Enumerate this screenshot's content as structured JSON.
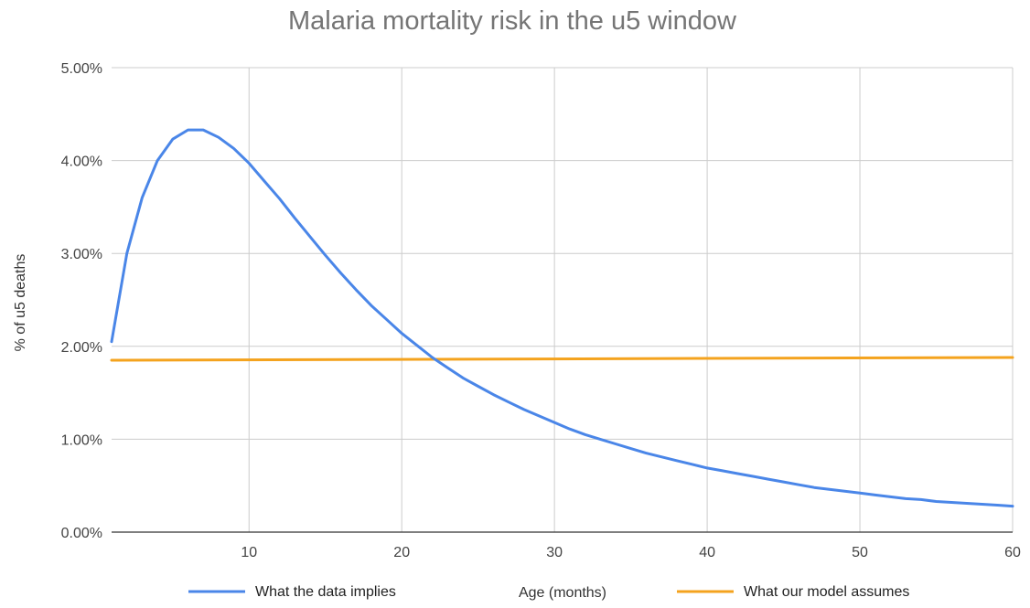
{
  "chart_data": {
    "type": "line",
    "title": "Malaria mortality risk in the u5 window",
    "xlabel": "Age (months)",
    "ylabel": "% of u5 deaths",
    "xlim": [
      1,
      60
    ],
    "ylim": [
      0,
      0.05
    ],
    "x_ticks": [
      10,
      20,
      30,
      40,
      50,
      60
    ],
    "x_tick_labels": [
      "10",
      "20",
      "30",
      "40",
      "50",
      "60"
    ],
    "y_ticks": [
      0,
      0.01,
      0.02,
      0.03,
      0.04,
      0.05
    ],
    "y_tick_labels": [
      "0.00%",
      "1.00%",
      "2.00%",
      "3.00%",
      "4.00%",
      "5.00%"
    ],
    "grid": true,
    "legend_position": "bottom",
    "x": [
      1,
      2,
      3,
      4,
      5,
      6,
      7,
      8,
      9,
      10,
      11,
      12,
      13,
      14,
      15,
      16,
      17,
      18,
      19,
      20,
      21,
      22,
      23,
      24,
      25,
      26,
      27,
      28,
      29,
      30,
      31,
      32,
      33,
      34,
      35,
      36,
      37,
      38,
      39,
      40,
      41,
      42,
      43,
      44,
      45,
      46,
      47,
      48,
      49,
      50,
      51,
      52,
      53,
      54,
      55,
      56,
      57,
      58,
      59,
      60
    ],
    "series": [
      {
        "name": "What the data implies",
        "color": "#4a86e8",
        "values": [
          0.0205,
          0.03,
          0.036,
          0.04,
          0.0423,
          0.0433,
          0.0433,
          0.0425,
          0.0413,
          0.0397,
          0.0378,
          0.0359,
          0.0338,
          0.0318,
          0.0298,
          0.0279,
          0.0261,
          0.0244,
          0.0229,
          0.0214,
          0.0201,
          0.0188,
          0.0177,
          0.0166,
          0.0157,
          0.0148,
          0.014,
          0.0132,
          0.0125,
          0.0118,
          0.0111,
          0.0105,
          0.01,
          0.0095,
          0.009,
          0.0085,
          0.0081,
          0.0077,
          0.0073,
          0.0069,
          0.0066,
          0.0063,
          0.006,
          0.0057,
          0.0054,
          0.0051,
          0.0048,
          0.0046,
          0.0044,
          0.0042,
          0.004,
          0.0038,
          0.0036,
          0.0035,
          0.0033,
          0.0032,
          0.0031,
          0.003,
          0.0029,
          0.0028
        ]
      },
      {
        "name": "What our model assumes",
        "color": "#f4a31e",
        "values": "linear",
        "start": 0.0185,
        "end": 0.0188
      }
    ]
  }
}
